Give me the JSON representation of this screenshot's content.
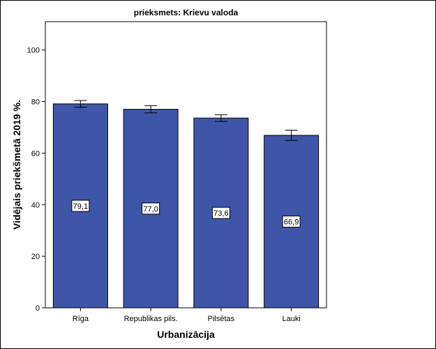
{
  "chart_data": {
    "type": "bar",
    "title": "prieksmets: Krievu valoda",
    "xlabel": "Urbanizācija",
    "ylabel": "Vidējais priekšmetā 2019 %.",
    "categories": [
      "Rīga",
      "Republikas pils.",
      "Pilsētas",
      "Lauki"
    ],
    "values": [
      79.1,
      77.0,
      73.6,
      66.9
    ],
    "value_labels": [
      "79,1",
      "77,0",
      "73,6",
      "66,9"
    ],
    "error_low": [
      77.8,
      75.6,
      72.3,
      64.9
    ],
    "error_high": [
      80.4,
      78.4,
      74.9,
      68.9
    ],
    "ylim": [
      0,
      111
    ],
    "yticks": [
      0,
      20,
      40,
      60,
      80,
      100
    ],
    "grid": false,
    "bar_color": "#3f56a8"
  }
}
